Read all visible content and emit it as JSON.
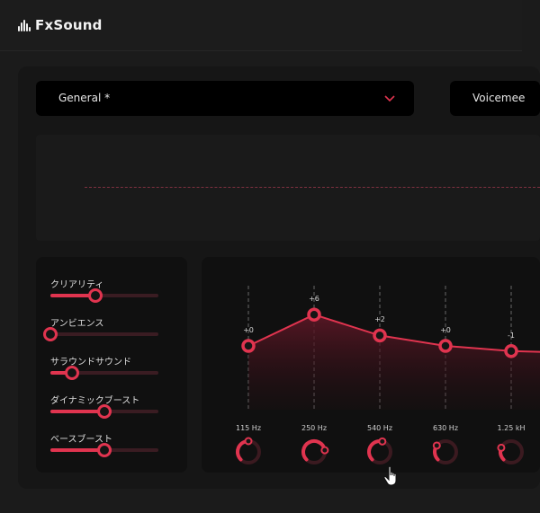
{
  "app": {
    "title": "FxSound"
  },
  "preset": {
    "selected": "General *"
  },
  "output_device": {
    "selected": "Voicemee"
  },
  "effects": [
    {
      "label": "クリアリティ",
      "value": 0.42
    },
    {
      "label": "アンビエンス",
      "value": 0.0
    },
    {
      "label": "サラウンドサウンド",
      "value": 0.2
    },
    {
      "label": "ダイナミックブースト",
      "value": 0.5
    },
    {
      "label": "ベースブースト",
      "value": 0.5
    }
  ],
  "eq": {
    "bands": [
      {
        "freq": "115 Hz",
        "gain_label": "+0",
        "gain": 0,
        "knob": 0.5
      },
      {
        "freq": "250 Hz",
        "gain_label": "+6",
        "gain": 6,
        "knob": 0.8
      },
      {
        "freq": "540 Hz",
        "gain_label": "+2",
        "gain": 2,
        "knob": 0.55
      },
      {
        "freq": "630 Hz",
        "gain_label": "+0",
        "gain": 0,
        "knob": 0.3
      },
      {
        "freq": "1.25 kH",
        "gain_label": "-1",
        "gain": -1,
        "knob": 0.25
      }
    ]
  },
  "colors": {
    "accent": "#e0344f",
    "background": "#1b1b1b",
    "panel": "#161616",
    "card": "#101010"
  }
}
